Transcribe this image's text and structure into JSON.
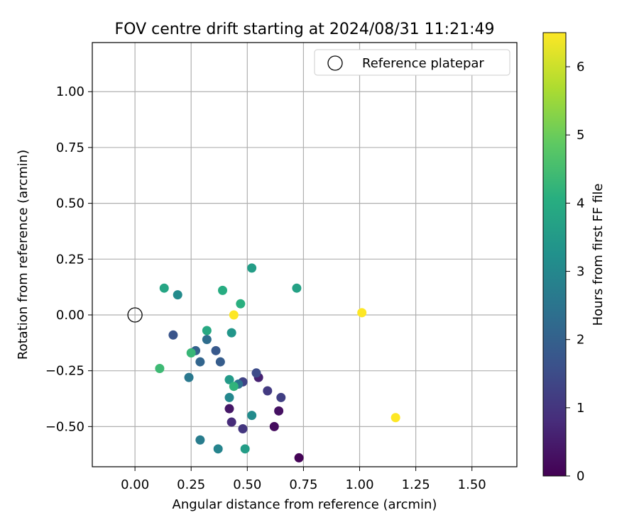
{
  "chart_data": {
    "type": "scatter",
    "title": "FOV centre drift starting at 2024/08/31 11:21:49",
    "xlabel": "Angular distance from reference (arcmin)",
    "ylabel": "Rotation from reference (arcmin)",
    "xlim": [
      -0.19,
      1.7
    ],
    "ylim": [
      -0.68,
      1.22
    ],
    "xticks": [
      "0.00",
      "0.25",
      "0.50",
      "0.75",
      "1.00",
      "1.25",
      "1.50"
    ],
    "yticks": [
      "−0.50",
      "−0.25",
      "0.00",
      "0.25",
      "0.50",
      "0.75",
      "1.00"
    ],
    "grid": true,
    "legend": {
      "placement": "top-right",
      "entries": [
        "Reference platepar"
      ]
    },
    "reference": {
      "name": "Reference platepar",
      "x": 0.0,
      "y": 0.0
    },
    "colorbar": {
      "label": "Hours from first FF file",
      "colormap": "viridis",
      "range": [
        0,
        6.5
      ],
      "ticks": [
        "0",
        "1",
        "2",
        "3",
        "4",
        "5",
        "6"
      ]
    },
    "points": [
      {
        "x": 0.73,
        "y": -0.64,
        "hours": 0.05
      },
      {
        "x": 0.62,
        "y": -0.5,
        "hours": 0.2
      },
      {
        "x": 0.64,
        "y": -0.43,
        "hours": 0.3
      },
      {
        "x": 0.42,
        "y": -0.42,
        "hours": 0.4
      },
      {
        "x": 0.55,
        "y": -0.28,
        "hours": 0.6
      },
      {
        "x": 0.43,
        "y": -0.48,
        "hours": 0.8
      },
      {
        "x": 0.48,
        "y": -0.51,
        "hours": 1.0
      },
      {
        "x": 0.59,
        "y": -0.34,
        "hours": 1.1
      },
      {
        "x": 0.65,
        "y": -0.37,
        "hours": 1.2
      },
      {
        "x": 0.48,
        "y": -0.3,
        "hours": 1.3
      },
      {
        "x": 0.54,
        "y": -0.26,
        "hours": 1.5
      },
      {
        "x": 0.17,
        "y": -0.09,
        "hours": 1.7
      },
      {
        "x": 0.36,
        "y": -0.16,
        "hours": 1.8
      },
      {
        "x": 0.38,
        "y": -0.21,
        "hours": 1.9
      },
      {
        "x": 0.27,
        "y": -0.16,
        "hours": 2.0
      },
      {
        "x": 0.29,
        "y": -0.21,
        "hours": 2.1
      },
      {
        "x": 0.32,
        "y": -0.11,
        "hours": 2.3
      },
      {
        "x": 0.46,
        "y": -0.31,
        "hours": 2.4
      },
      {
        "x": 0.24,
        "y": -0.28,
        "hours": 2.6
      },
      {
        "x": 0.29,
        "y": -0.56,
        "hours": 2.7
      },
      {
        "x": 0.37,
        "y": -0.6,
        "hours": 2.9
      },
      {
        "x": 0.42,
        "y": -0.37,
        "hours": 3.0
      },
      {
        "x": 0.52,
        "y": -0.45,
        "hours": 3.1
      },
      {
        "x": 0.19,
        "y": 0.09,
        "hours": 3.1
      },
      {
        "x": 0.43,
        "y": -0.08,
        "hours": 3.4
      },
      {
        "x": 0.42,
        "y": -0.29,
        "hours": 3.5
      },
      {
        "x": 0.49,
        "y": -0.6,
        "hours": 3.6
      },
      {
        "x": 0.52,
        "y": 0.21,
        "hours": 3.6
      },
      {
        "x": 0.72,
        "y": 0.12,
        "hours": 3.7
      },
      {
        "x": 0.13,
        "y": 0.12,
        "hours": 3.8
      },
      {
        "x": 0.32,
        "y": -0.07,
        "hours": 3.9
      },
      {
        "x": 0.39,
        "y": 0.11,
        "hours": 4.0
      },
      {
        "x": 0.47,
        "y": 0.05,
        "hours": 4.1
      },
      {
        "x": 0.44,
        "y": -0.32,
        "hours": 4.2
      },
      {
        "x": 0.25,
        "y": -0.17,
        "hours": 4.3
      },
      {
        "x": 0.11,
        "y": -0.24,
        "hours": 4.4
      },
      {
        "x": 0.44,
        "y": 0.0,
        "hours": 6.5
      },
      {
        "x": 1.01,
        "y": 0.01,
        "hours": 6.5
      },
      {
        "x": 1.16,
        "y": -0.46,
        "hours": 6.5
      }
    ]
  }
}
